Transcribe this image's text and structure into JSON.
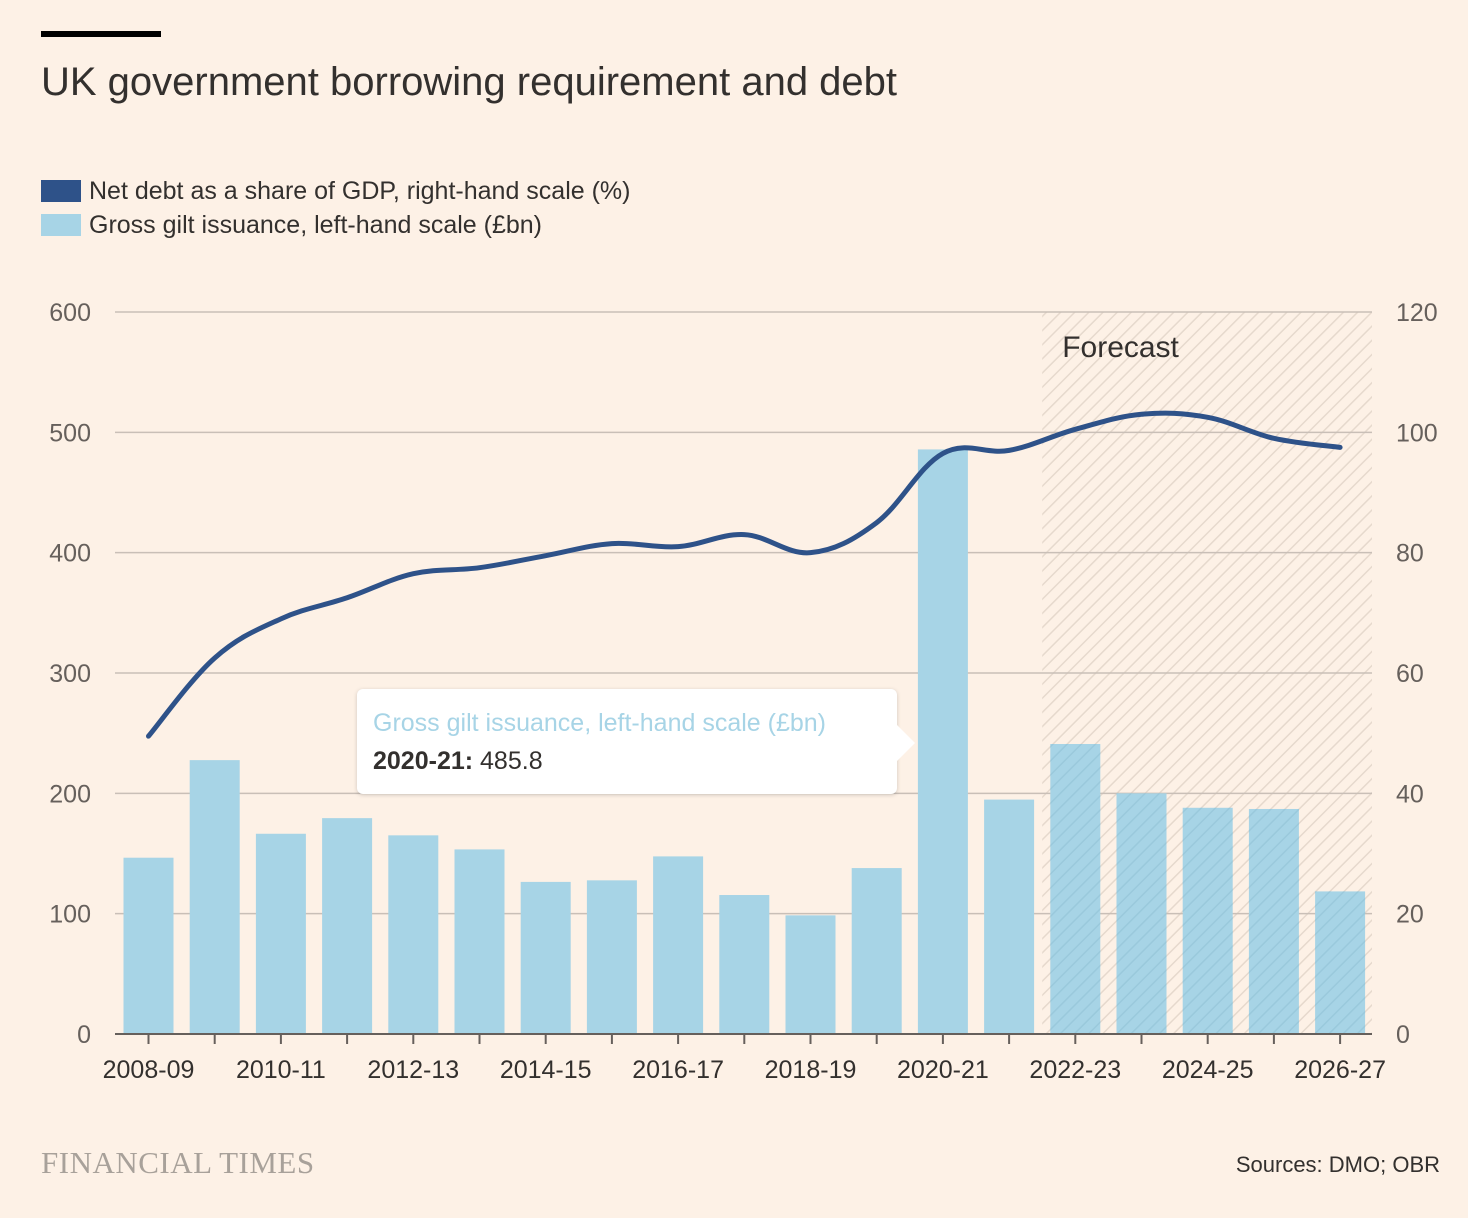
{
  "title": "UK government borrowing requirement and debt",
  "legend": {
    "debt_label": "Net debt as a share of GDP, right-hand scale (%)",
    "gilt_label": "Gross gilt issuance, left-hand scale (£bn)"
  },
  "colors": {
    "background": "#fdf1e6",
    "debt_line": "#2e5289",
    "gilt_bar": "#a7d4e6",
    "gridline": "#c9bfb7",
    "forecast_shade": "#ede2d8"
  },
  "tooltip": {
    "series": "Gross gilt issuance, left-hand scale (£bn)",
    "category": "2020-21:",
    "value": "485.8"
  },
  "footer": {
    "brand": "FINANCIAL TIMES",
    "source": "Sources: DMO; OBR"
  },
  "chart_data": {
    "type": "bar",
    "categories": [
      "2008-09",
      "2009-10",
      "2010-11",
      "2011-12",
      "2012-13",
      "2013-14",
      "2014-15",
      "2015-16",
      "2016-17",
      "2017-18",
      "2018-19",
      "2019-20",
      "2020-21",
      "2021-22",
      "2022-23",
      "2023-24",
      "2024-25",
      "2025-26",
      "2026-27"
    ],
    "tick_labels": [
      "2008-09",
      "2010-11",
      "2012-13",
      "2014-15",
      "2016-17",
      "2018-19",
      "2020-21",
      "2022-23",
      "2024-25",
      "2026-27"
    ],
    "series": [
      {
        "name": "Gross gilt issuance, left-hand scale (£bn)",
        "type": "bar",
        "axis": "left",
        "values": [
          146.5,
          227.6,
          166.4,
          179.4,
          165.1,
          153.4,
          126.4,
          127.7,
          147.6,
          115.5,
          98.6,
          137.9,
          485.8,
          194.8,
          241.0,
          200.0,
          188.0,
          187.0,
          118.5
        ]
      },
      {
        "name": "Net debt as a share of GDP, right-hand scale (%)",
        "type": "line",
        "axis": "right",
        "values": [
          49.5,
          62.5,
          69.0,
          72.5,
          76.5,
          77.5,
          79.5,
          81.5,
          81.0,
          83.0,
          80.0,
          85.0,
          96.5,
          97.0,
          100.5,
          103.0,
          102.5,
          99.0,
          97.5
        ]
      }
    ],
    "forecast": {
      "label": "Forecast",
      "from": "2022-23",
      "to": "2026-27"
    },
    "ylim_left": [
      0,
      600
    ],
    "yticks_left": [
      0,
      100,
      200,
      300,
      400,
      500,
      600
    ],
    "ylim_right": [
      0,
      120
    ],
    "yticks_right": [
      0,
      20,
      40,
      60,
      80,
      100,
      120
    ],
    "grid": true
  }
}
